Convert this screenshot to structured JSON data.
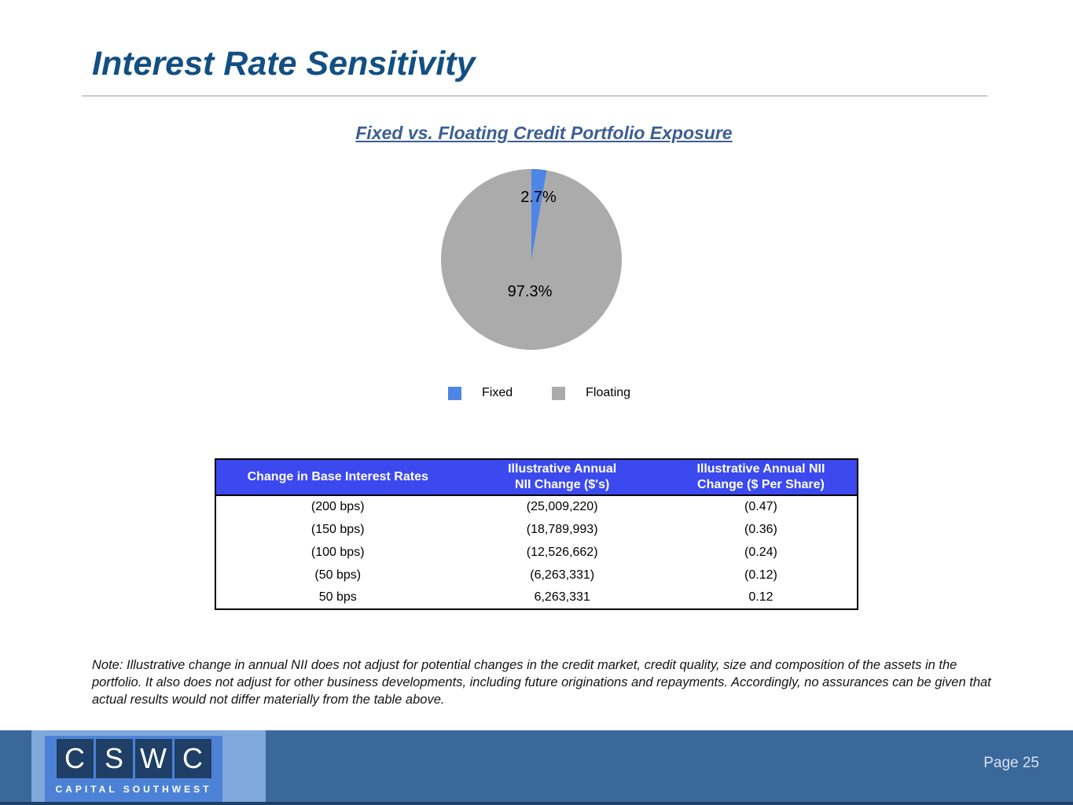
{
  "slide": {
    "title": "Interest Rate Sensitivity",
    "chart_title": "Fixed vs. Floating Credit Portfolio Exposure",
    "note": "Note:  Illustrative change in annual NII does not adjust for potential changes in the credit market, credit quality, size and composition of the assets in the portfolio. It also does not adjust for other business developments, including future originations and repayments. Accordingly, no assurances can be given that actual results would not differ materially from the table above.",
    "page_label": "Page 25"
  },
  "logo": {
    "letters": [
      "C",
      "S",
      "W",
      "C"
    ],
    "subtext": "CAPITAL SOUTHWEST"
  },
  "colors": {
    "title_blue": "#134F82",
    "subtitle_blue": "#3C5E92",
    "rule_gray": "#C8C8C8",
    "table_header_blue": "#3B49EE",
    "footer_bar_blue": "#3A689B",
    "logo_panel_light_blue": "#7FA8DB",
    "logo_block_blue": "#4C82D6",
    "logo_tile_navy": "#1F3F66"
  },
  "chart_data": [
    {
      "type": "pie",
      "title": "Fixed vs. Floating Credit Portfolio Exposure",
      "labels": [
        "Fixed",
        "Floating"
      ],
      "values": [
        2.7,
        97.3
      ],
      "data_labels": [
        "2.7%",
        "97.3%"
      ],
      "colors": [
        "#4E86E8",
        "#ABABAB"
      ],
      "legend_position": "bottom",
      "start_angle_deg": 0,
      "direction": "clockwise"
    },
    {
      "type": "table",
      "columns": [
        "Change in Base Interest Rates",
        "Illustrative Annual\nNII Change ($'s)",
        "Illustrative Annual NII\nChange ($ Per Share)"
      ],
      "rows": [
        [
          "(200 bps)",
          "(25,009,220)",
          "(0.47)"
        ],
        [
          "(150 bps)",
          "(18,789,993)",
          "(0.36)"
        ],
        [
          "(100 bps)",
          "(12,526,662)",
          "(0.24)"
        ],
        [
          "(50 bps)",
          "(6,263,331)",
          "(0.12)"
        ],
        [
          "50 bps",
          "6,263,331",
          "0.12"
        ]
      ]
    }
  ]
}
